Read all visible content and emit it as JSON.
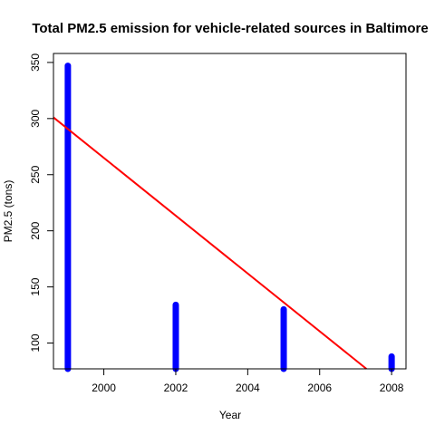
{
  "chart_data": {
    "type": "bar",
    "title": "Total PM2.5 emission for vehicle-related sources in Baltimore",
    "xlabel": "Year",
    "ylabel": "PM2.5 (tons)",
    "x": [
      1999,
      2002,
      2005,
      2008
    ],
    "values": [
      347,
      134,
      130,
      88
    ],
    "xlim": [
      1998.6,
      2008.4
    ],
    "ylim": [
      77,
      358
    ],
    "xticks": [
      2000,
      2002,
      2004,
      2006,
      2008
    ],
    "yticks": [
      100,
      150,
      200,
      250,
      300,
      350
    ],
    "bar_color": "#0000ff",
    "trend_line": {
      "color": "#ff0000",
      "x": [
        1998.6,
        2007.3
      ],
      "y": [
        301,
        77
      ]
    },
    "grid": false,
    "legend": "none"
  }
}
